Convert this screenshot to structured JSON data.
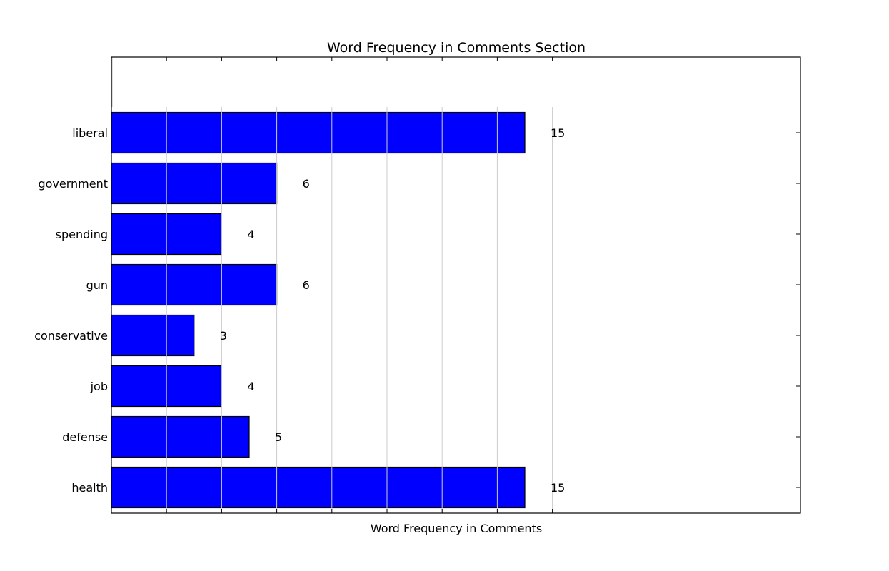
{
  "chart_data": {
    "type": "bar",
    "orientation": "horizontal",
    "title": "Word Frequency in Comments Section",
    "xlabel": "Word Frequency in Comments",
    "ylabel": "",
    "categories": [
      "liberal",
      "government",
      "spending",
      "gun",
      "conservative",
      "job",
      "defense",
      "health"
    ],
    "values": [
      15,
      6,
      4,
      6,
      3,
      4,
      5,
      15
    ],
    "xlim": [
      0,
      25
    ],
    "x_ticks": [
      0,
      2,
      4,
      6,
      8,
      10,
      12,
      14,
      16
    ],
    "x_tick_labels_shown": false,
    "grid": "vertical lines over bars",
    "bar_color": "#0000ff",
    "bar_edge_color": "#000000",
    "grid_color": "#cccccc",
    "value_labels": true
  }
}
